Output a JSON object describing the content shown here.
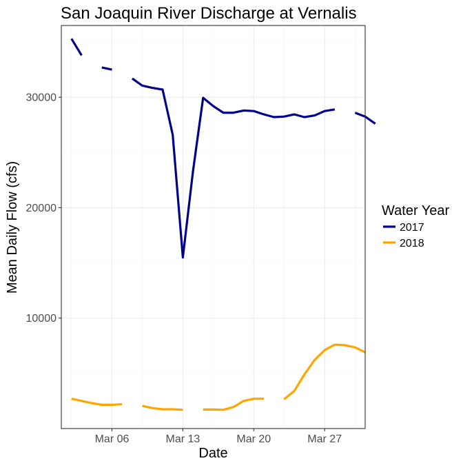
{
  "chart_data": {
    "type": "line",
    "title": "San Joaquin River Discharge at Vernalis",
    "xlabel": "Date",
    "ylabel": "Mean Daily Flow (cfs)",
    "x_type": "date",
    "xlim": [
      "2017-03-01",
      "2017-03-31"
    ],
    "ylim": [
      0,
      36500
    ],
    "x_ticks": [
      {
        "date": "2017-03-06",
        "label": "Mar 06"
      },
      {
        "date": "2017-03-13",
        "label": "Mar 13"
      },
      {
        "date": "2017-03-20",
        "label": "Mar 20"
      },
      {
        "date": "2017-03-27",
        "label": "Mar 27"
      }
    ],
    "y_ticks": [
      {
        "value": 10000,
        "label": "10000"
      },
      {
        "value": 20000,
        "label": "20000"
      },
      {
        "value": 30000,
        "label": "30000"
      }
    ],
    "grid": true,
    "legend": {
      "title": "Water Year",
      "position": "right"
    },
    "series": [
      {
        "name": "2017",
        "color": "#00008B",
        "points": [
          {
            "date": "2017-03-02",
            "value": 35300
          },
          {
            "date": "2017-03-03",
            "value": 33800
          },
          {
            "date": "2017-03-04",
            "value": null
          },
          {
            "date": "2017-03-05",
            "value": 32700
          },
          {
            "date": "2017-03-06",
            "value": 32500
          },
          {
            "date": "2017-03-07",
            "value": null
          },
          {
            "date": "2017-03-08",
            "value": 31700
          },
          {
            "date": "2017-03-09",
            "value": 31050
          },
          {
            "date": "2017-03-10",
            "value": 30850
          },
          {
            "date": "2017-03-11",
            "value": 30700
          },
          {
            "date": "2017-03-12",
            "value": 26600
          },
          {
            "date": "2017-03-13",
            "value": 15500
          },
          {
            "date": "2017-03-14",
            "value": 23300
          },
          {
            "date": "2017-03-15",
            "value": 29950
          },
          {
            "date": "2017-03-16",
            "value": 29200
          },
          {
            "date": "2017-03-17",
            "value": 28600
          },
          {
            "date": "2017-03-18",
            "value": 28600
          },
          {
            "date": "2017-03-19",
            "value": 28800
          },
          {
            "date": "2017-03-20",
            "value": 28750
          },
          {
            "date": "2017-03-21",
            "value": 28450
          },
          {
            "date": "2017-03-22",
            "value": 28200
          },
          {
            "date": "2017-03-23",
            "value": 28250
          },
          {
            "date": "2017-03-24",
            "value": 28450
          },
          {
            "date": "2017-03-25",
            "value": 28200
          },
          {
            "date": "2017-03-26",
            "value": 28350
          },
          {
            "date": "2017-03-27",
            "value": 28750
          },
          {
            "date": "2017-03-28",
            "value": 28900
          },
          {
            "date": "2017-03-29",
            "value": null
          },
          {
            "date": "2017-03-30",
            "value": 28600
          },
          {
            "date": "2017-03-31",
            "value": 28250
          },
          {
            "date": "2017-04-01",
            "value": 27600
          }
        ]
      },
      {
        "name": "2018",
        "color": "#FFA500",
        "points": [
          {
            "date": "2017-03-02",
            "value": 2700
          },
          {
            "date": "2017-03-03",
            "value": 2500
          },
          {
            "date": "2017-03-04",
            "value": 2300
          },
          {
            "date": "2017-03-05",
            "value": 2150
          },
          {
            "date": "2017-03-06",
            "value": 2150
          },
          {
            "date": "2017-03-07",
            "value": 2200
          },
          {
            "date": "2017-03-08",
            "value": null
          },
          {
            "date": "2017-03-09",
            "value": 2050
          },
          {
            "date": "2017-03-10",
            "value": 1850
          },
          {
            "date": "2017-03-11",
            "value": 1750
          },
          {
            "date": "2017-03-12",
            "value": 1750
          },
          {
            "date": "2017-03-13",
            "value": 1700
          },
          {
            "date": "2017-03-14",
            "value": null
          },
          {
            "date": "2017-03-15",
            "value": 1720
          },
          {
            "date": "2017-03-16",
            "value": 1720
          },
          {
            "date": "2017-03-17",
            "value": 1700
          },
          {
            "date": "2017-03-18",
            "value": 1950
          },
          {
            "date": "2017-03-19",
            "value": 2500
          },
          {
            "date": "2017-03-20",
            "value": 2700
          },
          {
            "date": "2017-03-21",
            "value": 2700
          },
          {
            "date": "2017-03-22",
            "value": null
          },
          {
            "date": "2017-03-23",
            "value": 2650
          },
          {
            "date": "2017-03-24",
            "value": 3400
          },
          {
            "date": "2017-03-25",
            "value": 4900
          },
          {
            "date": "2017-03-26",
            "value": 6200
          },
          {
            "date": "2017-03-27",
            "value": 7100
          },
          {
            "date": "2017-03-28",
            "value": 7600
          },
          {
            "date": "2017-03-29",
            "value": 7550
          },
          {
            "date": "2017-03-30",
            "value": 7350
          },
          {
            "date": "2017-03-31",
            "value": 6900
          }
        ]
      }
    ]
  }
}
